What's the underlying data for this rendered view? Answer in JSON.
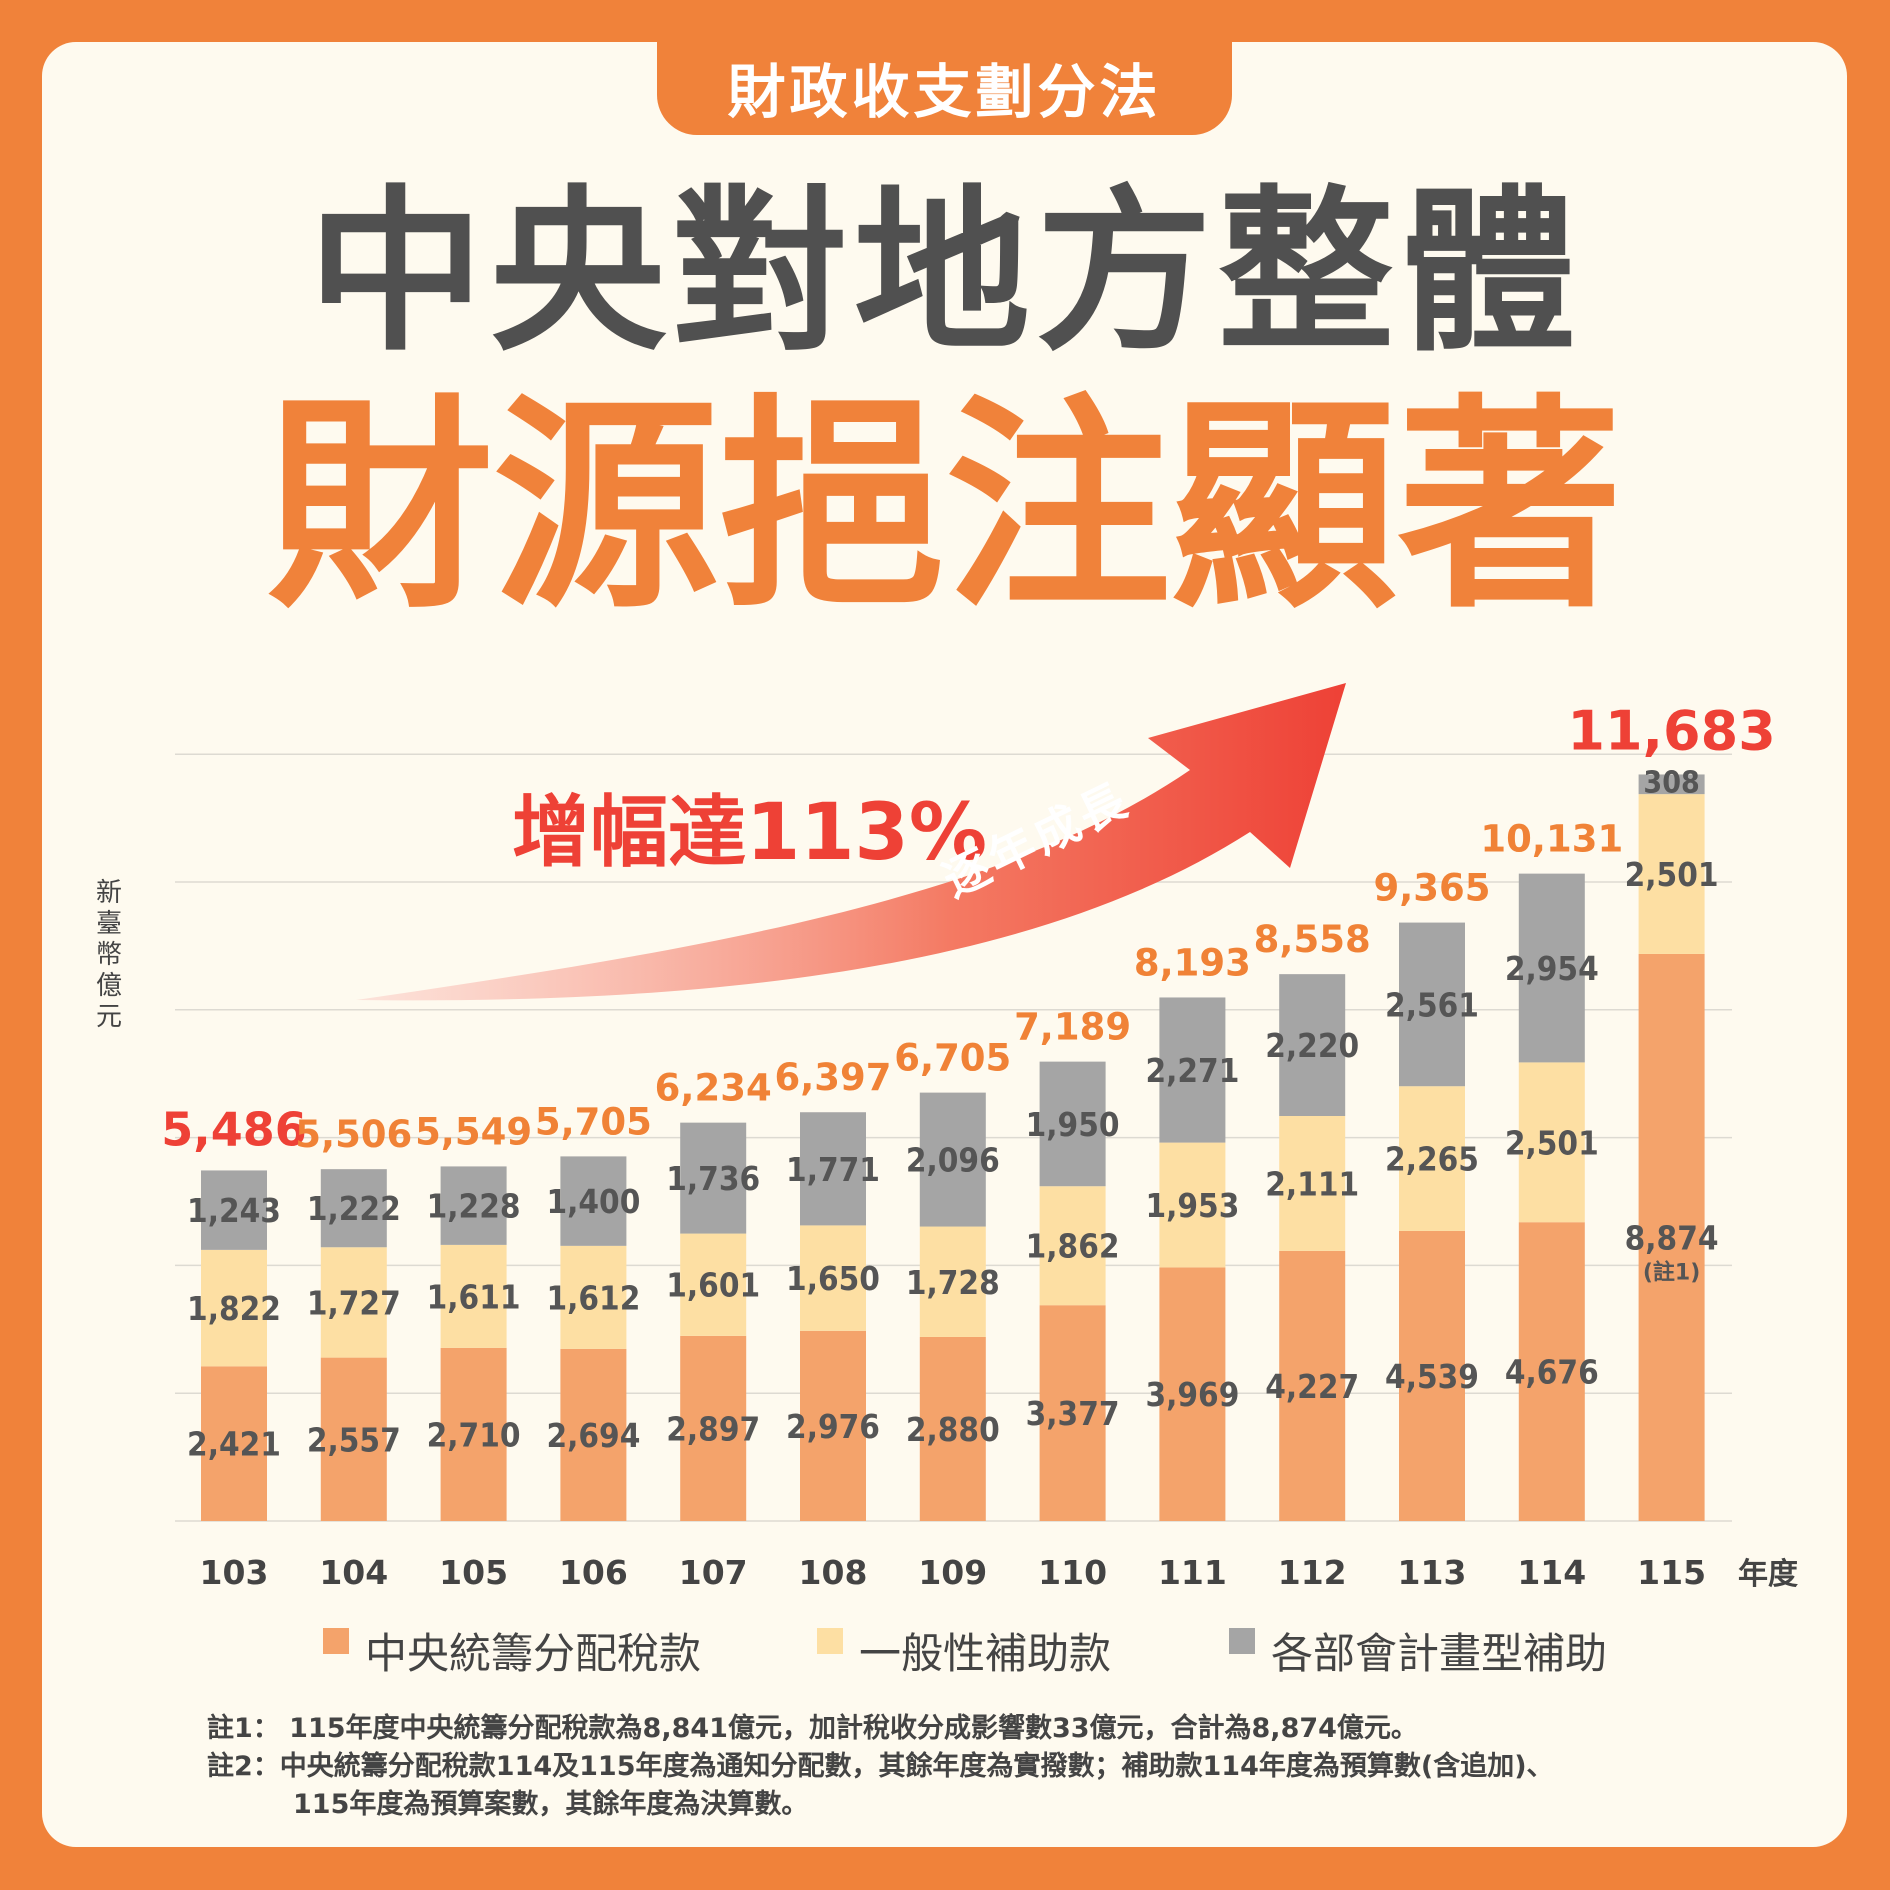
{
  "header": {
    "tab_label": "財政收支劃分法",
    "title_line1": "中央對地方整體",
    "title_line2": "財源挹注顯著"
  },
  "annotations": {
    "growth": "增幅達113%",
    "trend": "逐年成長"
  },
  "colors": {
    "background": "#F0823A",
    "central_tax": "#F4A36B",
    "general_subsidy": "#FDDFA3",
    "dept_subsidy": "#A5A5A5",
    "total_label": "#F08236",
    "highlight": "#EE4136",
    "value_label": "#555555"
  },
  "chart_data": {
    "type": "bar",
    "stacked": true,
    "ylabel": "新臺幣億元",
    "xlabel": "年度",
    "ylim": [
      0,
      12000
    ],
    "grid": true,
    "legend_position": "bottom",
    "categories": [
      "103",
      "104",
      "105",
      "106",
      "107",
      "108",
      "109",
      "110",
      "111",
      "112",
      "113",
      "114",
      "115"
    ],
    "series": [
      {
        "name": "中央統籌分配稅款",
        "values": [
          2421,
          2557,
          2710,
          2694,
          2897,
          2976,
          2880,
          3377,
          3969,
          4227,
          4539,
          4676,
          8874
        ]
      },
      {
        "name": "一般性補助款",
        "values": [
          1822,
          1727,
          1611,
          1612,
          1601,
          1650,
          1728,
          1862,
          1953,
          2111,
          2265,
          2501,
          2501
        ]
      },
      {
        "name": "各部會計畫型補助",
        "values": [
          1243,
          1222,
          1228,
          1400,
          1736,
          1771,
          2096,
          1950,
          2271,
          2220,
          2561,
          2954,
          308
        ]
      }
    ],
    "value_labels": [
      [
        "2,421",
        "2,557",
        "2,710",
        "2,694",
        "2,897",
        "2,976",
        "2,880",
        "3,377",
        "3,969",
        "4,227",
        "4,539",
        "4,676",
        "8,874"
      ],
      [
        "1,822",
        "1,727",
        "1,611",
        "1,612",
        "1,601",
        "1,650",
        "1,728",
        "1,862",
        "1,953",
        "2,111",
        "2,265",
        "2,501",
        "2,501"
      ],
      [
        "1,243",
        "1,222",
        "1,228",
        "1,400",
        "1,736",
        "1,771",
        "2,096",
        "1,950",
        "2,271",
        "2,220",
        "2,561",
        "2,954",
        "308"
      ]
    ],
    "totals": [
      5486,
      5506,
      5549,
      5705,
      6234,
      6397,
      6705,
      7189,
      8193,
      8558,
      9365,
      10131,
      11683
    ],
    "total_labels": [
      "5,486",
      "5,506",
      "5,549",
      "5,705",
      "6,234",
      "6,397",
      "6,705",
      "7,189",
      "8,193",
      "8,558",
      "9,365",
      "10,131",
      "11,683"
    ],
    "highlighted_totals": [
      "103",
      "115"
    ],
    "bar_note": "(註1)"
  },
  "notes": [
    "註1： 115年度中央統籌分配稅款為8,841億元，加計稅收分成影響數33億元，合計為8,874億元。",
    "註2：中央統籌分配稅款114及115年度為通知分配數，其餘年度為實撥數；補助款114年度為預算數(含追加)、",
    "115年度為預算案數，其餘年度為決算數。"
  ]
}
